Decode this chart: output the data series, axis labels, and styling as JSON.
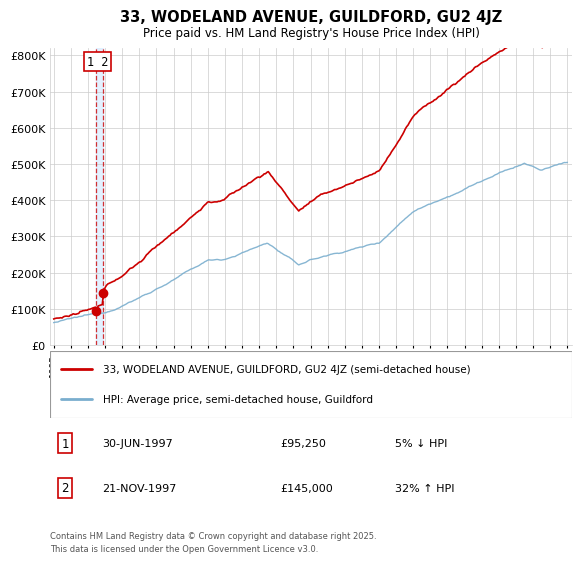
{
  "title": "33, WODELAND AVENUE, GUILDFORD, GU2 4JZ",
  "subtitle": "Price paid vs. HM Land Registry's House Price Index (HPI)",
  "legend_line1": "33, WODELAND AVENUE, GUILDFORD, GU2 4JZ (semi-detached house)",
  "legend_line2": "HPI: Average price, semi-detached house, Guildford",
  "footer": "Contains HM Land Registry data © Crown copyright and database right 2025.\nThis data is licensed under the Open Government Licence v3.0.",
  "sale1_date": 1997.49,
  "sale1_price": 95250,
  "sale2_date": 1997.9,
  "sale2_price": 145000,
  "red_color": "#cc0000",
  "blue_color": "#7aaece",
  "vband_color": "#ddeeff",
  "ylim": [
    0,
    820000
  ],
  "xlim_start": 1994.8,
  "xlim_end": 2025.3,
  "background_color": "#ffffff",
  "grid_color": "#cccccc",
  "table_data": [
    [
      "1",
      "30-JUN-1997",
      "£95,250",
      "5% ↓ HPI"
    ],
    [
      "2",
      "21-NOV-1997",
      "£145,000",
      "32% ↑ HPI"
    ]
  ]
}
